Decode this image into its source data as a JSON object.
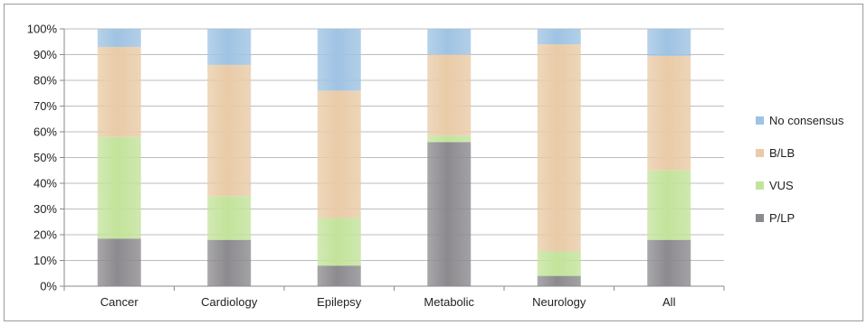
{
  "colors": {
    "no_consensus": "#9fc3e3",
    "b_lb": "#e9cba7",
    "vus": "#c3e39b",
    "p_lp": "#8c8a8e",
    "gridline": "#bdbdbd",
    "axis": "#8a8a8a"
  },
  "chart_data": {
    "type": "bar",
    "stacked": true,
    "categories": [
      "Cancer",
      "Cardiology",
      "Epilepsy",
      "Metabolic",
      "Neurology",
      "All"
    ],
    "series": [
      {
        "name": "P/LP",
        "values": [
          18.5,
          18,
          8,
          56,
          4,
          18
        ],
        "color_key": "p_lp"
      },
      {
        "name": "VUS",
        "values": [
          39.5,
          17,
          18.5,
          2.5,
          9.5,
          27
        ],
        "color_key": "vus"
      },
      {
        "name": "B/LB",
        "values": [
          35,
          51,
          49.5,
          31.5,
          80.5,
          44.5
        ],
        "color_key": "b_lb"
      },
      {
        "name": "No consensus",
        "values": [
          7,
          14,
          24,
          10,
          6,
          10.5
        ],
        "color_key": "no_consensus"
      }
    ],
    "yticks": [
      "0%",
      "10%",
      "20%",
      "30%",
      "40%",
      "50%",
      "60%",
      "70%",
      "80%",
      "90%",
      "100%"
    ],
    "ylim": [
      0,
      100
    ],
    "grid": true,
    "legend": {
      "placement": "right",
      "order": [
        "No consensus",
        "B/LB",
        "VUS",
        "P/LP"
      ]
    }
  }
}
